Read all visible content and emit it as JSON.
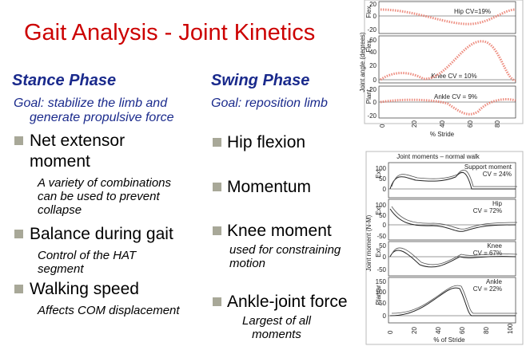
{
  "title": "Gait Analysis - Joint Kinetics",
  "stance": {
    "heading": "Stance Phase",
    "goal": [
      "Goal: stabilize the limb and",
      "generate propulsive force"
    ],
    "bullets": [
      {
        "text": [
          "Net extensor",
          "moment"
        ],
        "sub": [
          "A variety of combinations",
          "can be used to prevent",
          "collapse"
        ]
      },
      {
        "text": [
          "Balance during gait"
        ],
        "sub": [
          "Control of the HAT",
          "segment"
        ]
      },
      {
        "text": [
          "Walking speed"
        ],
        "sub": [
          "Affects COM displacement"
        ]
      }
    ]
  },
  "swing": {
    "heading": "Swing Phase",
    "goal": [
      "Goal: reposition limb"
    ],
    "bullets": [
      {
        "text": [
          "Hip flexion"
        ],
        "sub": []
      },
      {
        "text": [
          "Momentum"
        ],
        "sub": []
      },
      {
        "text": [
          "Knee moment"
        ],
        "sub": [
          "used for constraining",
          "motion"
        ]
      },
      {
        "text": [
          "Ankle-joint force"
        ],
        "sub": [
          "Largest of all",
          "moments"
        ]
      }
    ]
  },
  "figure_angles": {
    "ylabel": "Joint angle (degrees)",
    "xlabel": "% Stride",
    "xticks": [
      "0",
      "20",
      "40",
      "60",
      "80"
    ],
    "panels": [
      {
        "side": "Flex.",
        "note": "Hip CV=19%",
        "ticks": [
          "20",
          "0",
          "-20"
        ]
      },
      {
        "side": "Flex.",
        "note": "Knee CV = 10%",
        "ticks": [
          "60",
          "40",
          "20",
          "0"
        ]
      },
      {
        "side": "Plant.",
        "note": "Ankle CV = 9%",
        "ticks": [
          "20",
          "0",
          "-20"
        ]
      }
    ]
  },
  "figure_moments": {
    "title": "Joint moments – normal walk",
    "ylabel": "Joint moment (N-M)",
    "xlabel": "% of Stride",
    "xticks": [
      "0",
      "20",
      "40",
      "60",
      "80",
      "100"
    ],
    "panels": [
      {
        "side": "Ext",
        "note": [
          "Support moment",
          "CV = 24%"
        ],
        "ticks": [
          "100",
          "50",
          "0"
        ]
      },
      {
        "side": "Ext",
        "note": [
          "Hip",
          "CV = 72%"
        ],
        "ticks": [
          "100",
          "50",
          "0",
          "-50"
        ]
      },
      {
        "side": "Ext",
        "note": [
          "Knee",
          "CV = 67%"
        ],
        "ticks": [
          "50",
          "0",
          "-50"
        ]
      },
      {
        "side": "Plantar",
        "note": [
          "Ankle",
          "CV = 22%"
        ],
        "ticks": [
          "150",
          "100",
          "50",
          "0"
        ]
      }
    ]
  }
}
